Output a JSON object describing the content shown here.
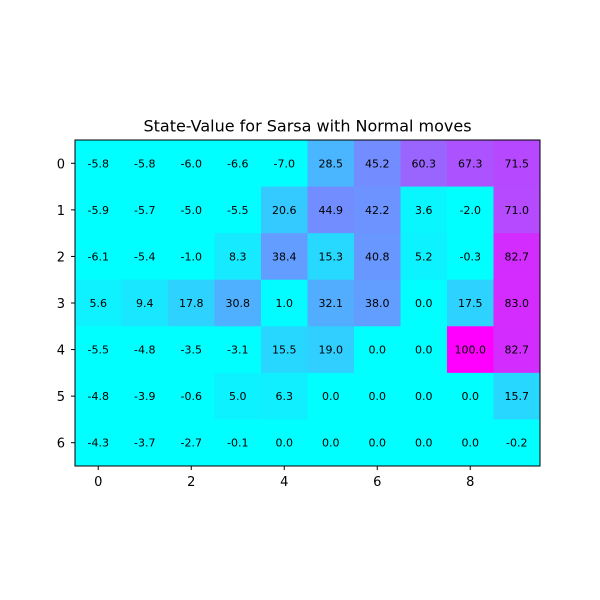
{
  "chart_data": {
    "type": "heatmap",
    "title": "State-Value for Sarsa with Normal moves",
    "colormap": "cool",
    "value_range": [
      0,
      100
    ],
    "rows": 7,
    "cols": 10,
    "x_ticks": [
      0,
      2,
      4,
      6,
      8
    ],
    "y_ticks": [
      0,
      1,
      2,
      3,
      4,
      5,
      6
    ],
    "values": [
      [
        -5.8,
        -5.8,
        -6.0,
        -6.6,
        -7.0,
        28.5,
        45.2,
        60.3,
        67.3,
        71.5
      ],
      [
        -5.9,
        -5.7,
        -5.0,
        -5.5,
        20.6,
        44.9,
        42.2,
        3.6,
        -2.0,
        71.0
      ],
      [
        -6.1,
        -5.4,
        -1.0,
        8.3,
        38.4,
        15.3,
        40.8,
        5.2,
        -0.3,
        82.7
      ],
      [
        5.6,
        9.4,
        17.8,
        30.8,
        1.0,
        32.1,
        38.0,
        0.0,
        17.5,
        83.0
      ],
      [
        -5.5,
        -4.8,
        -3.5,
        -3.1,
        15.5,
        19.0,
        0.0,
        0.0,
        100.0,
        82.7
      ],
      [
        -4.8,
        -3.9,
        -0.6,
        5.0,
        6.3,
        0.0,
        0.0,
        0.0,
        0.0,
        15.7
      ],
      [
        -4.3,
        -3.7,
        -2.7,
        -0.1,
        0.0,
        0.0,
        0.0,
        0.0,
        0.0,
        -0.2
      ]
    ]
  }
}
